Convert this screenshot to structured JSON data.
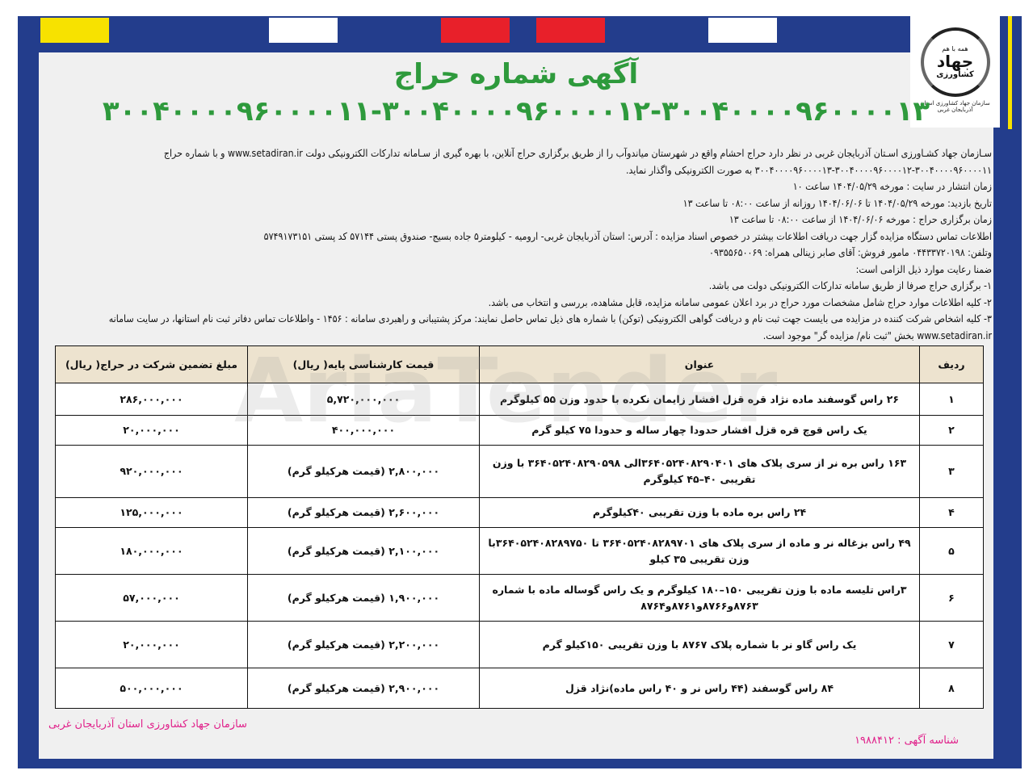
{
  "colors": {
    "frame": "#233d8c",
    "title": "#2e9a3c",
    "footer": "#e0208a",
    "header_bg": "#ede3cf",
    "blocks": [
      "#f7e200",
      "#ffffff",
      "#e8202a",
      "#e8202a",
      "#ffffff"
    ]
  },
  "logo": {
    "top": "همه با هم",
    "main": "جهاد",
    "sub": "کشاورزی",
    "caption": "سازمان جهاد کشاورزی استان آذربایجان غربی"
  },
  "title": "آگهی شماره حراج",
  "auction_numbers": "۳۰۰۴۰۰۰۰۹۶۰۰۰۰۱۱-۳۰۰۴۰۰۰۰۹۶۰۰۰۰۱۲-۳۰۰۴۰۰۰۰۹۶۰۰۰۰۱۳",
  "paragraphs": [
    "سـازمان جهاد کشـاورزی اسـتان آذربایجان غربی در نظر دارد حراج احشام واقع در شهرستان میاندوآب را از طریق برگزاری حراج آنلاین، با بهره گیری از سـامانه تدارکات الکترونیکی دولت www.setadiran.ir و با شماره حراج ۳۰۰۴۰۰۰۰۹۶۰۰۰۰۱۱-۳۰۰۴۰۰۰۰۹۶۰۰۰۰۱۲-۳۰۰۴۰۰۰۰۹۶۰۰۰۰۱۳ به صورت الکترونیکی واگذار نماید.",
    "زمان انتشار در سایت : مورخه ۱۴۰۴/۰۵/۲۹ ساعت ۱۰",
    "تاریخ بازدید: مورخه ۱۴۰۴/۰۵/۲۹ تا ۱۴۰۴/۰۶/۰۶ روزانه از ساعت ۰۸:۰۰ تا ساعت ۱۳",
    "زمان برگزاری حراج : مورخه ۱۴۰۴/۰۶/۰۶ از ساعت ۰۸:۰۰ تا ساعت ۱۳",
    "اطلاعات تماس دستگاه مزایده گزار جهت دریافت اطلاعات بیشتر در خصوص اسناد مزایده : آدرس: استان آذربایجان غربی- ارومیه - کیلومتر۵ جاده بسیج- صندوق پستی ۵۷۱۴۴ کد پستی ۵۷۴۹۱۷۳۱۵۱",
    "وتلفن: ۰۴۴۳۳۷۲۰۱۹۸ مامور فروش: آقای صابر زینالی همراه: ۰۹۳۵۵۶۵۰۰۶۹",
    "ضمنا رعایت موارد ذیل الزامی است:",
    "۱- برگزاری حراج صرفا از طریق سامانه تدارکات الکترونیکی دولت می باشد.",
    "۲- کلیه اطلاعات موارد حراج شامل مشخصات مورد حراج در برد اعلان عمومی سامانه مزایده، قابل مشاهده، بررسی و انتخاب می باشد.",
    "۳- کلیه اشخاص شرکت کننده در مزایده می بایست جهت ثبت نام و دریافت گواهی الکترونیکی (توکن) با شماره های ذیل تماس حاصل نمایند: مرکز پشتیبانی و راهبردی سامانه : ۱۴۵۶ - واطلاعات تماس دفاتر ثبت نام استانها، در سایت سامانه www.setadiran.ir بخش \"ثبت نام/ مزایده گر\" موجود است."
  ],
  "table": {
    "headers": [
      "ردیف",
      "عنوان",
      "قیمت کارشناسی پایه( ریال)",
      "مبلغ تضمین شرکت در حراج( ریال)"
    ],
    "rows": [
      [
        "۱",
        "۲۶ راس گوسفند ماده نژاد قره قزل افشار زایمان نکرده با حدود وزن ۵۵ کیلوگرم",
        "۵,۷۲۰,۰۰۰,۰۰۰",
        "۲۸۶,۰۰۰,۰۰۰"
      ],
      [
        "۲",
        "یک راس قوچ قره قزل افشار حدودا چهار ساله و حدودا ۷۵ کیلو گرم",
        "۴۰۰,۰۰۰,۰۰۰",
        "۲۰,۰۰۰,۰۰۰"
      ],
      [
        "۳",
        "۱۶۳ راس بره نر از سری پلاک های ۳۶۴۰۵۲۴۰۸۲۹۰۴۰۱الی ۳۶۴۰۵۲۴۰۸۲۹۰۵۹۸ با وزن تقریبی ۴۰–۴۵ کیلوگرم",
        "۲,۸۰۰,۰۰۰ (قیمت هرکیلو گرم)",
        "۹۲۰,۰۰۰,۰۰۰"
      ],
      [
        "۴",
        "۲۴ راس بره ماده با وزن تقریبی ۴۰کیلوگرم",
        "۲,۶۰۰,۰۰۰ (قیمت هرکیلو گرم)",
        "۱۲۵,۰۰۰,۰۰۰"
      ],
      [
        "۵",
        "۴۹ راس بزغاله نر و ماده از سری پلاک های ۳۶۴۰۵۲۴۰۸۲۸۹۷۰۱ تا ۳۶۴۰۵۲۴۰۸۲۸۹۷۵۰با وزن تقریبی ۳۵ کیلو",
        "۲,۱۰۰,۰۰۰ (قیمت هرکیلو گرم)",
        "۱۸۰,۰۰۰,۰۰۰"
      ],
      [
        "۶",
        "۳راس تلیسه ماده با وزن تقریبی ۱۵۰–۱۸۰ کیلوگرم و یک راس گوساله ماده با شماره ۸۷۶۳و۸۷۶۶و۸۷۶۱و۸۷۶۴",
        "۱,۹۰۰,۰۰۰ (قیمت هرکیلو گرم)",
        "۵۷,۰۰۰,۰۰۰"
      ],
      [
        "۷",
        "یک راس گاو نر با شماره پلاک ۸۷۶۷ با وزن تقریبی ۱۵۰کیلو گرم",
        "۲,۲۰۰,۰۰۰ (قیمت هرکیلو گرم)",
        "۲۰,۰۰۰,۰۰۰"
      ],
      [
        "۸",
        "۸۴ راس گوسفند (۴۴ راس نر و ۴۰ راس ماده)نژاد قزل",
        "۲,۹۰۰,۰۰۰ (قیمت هرکیلو گرم)",
        "۵۰۰,۰۰۰,۰۰۰"
      ]
    ]
  },
  "watermark": "AriaTender",
  "footer": {
    "org": "سازمان جهاد کشاورزی استان آذربایجان غربی",
    "ad_id": "شناسه آگهی : ۱۹۸۸۴۱۲"
  }
}
